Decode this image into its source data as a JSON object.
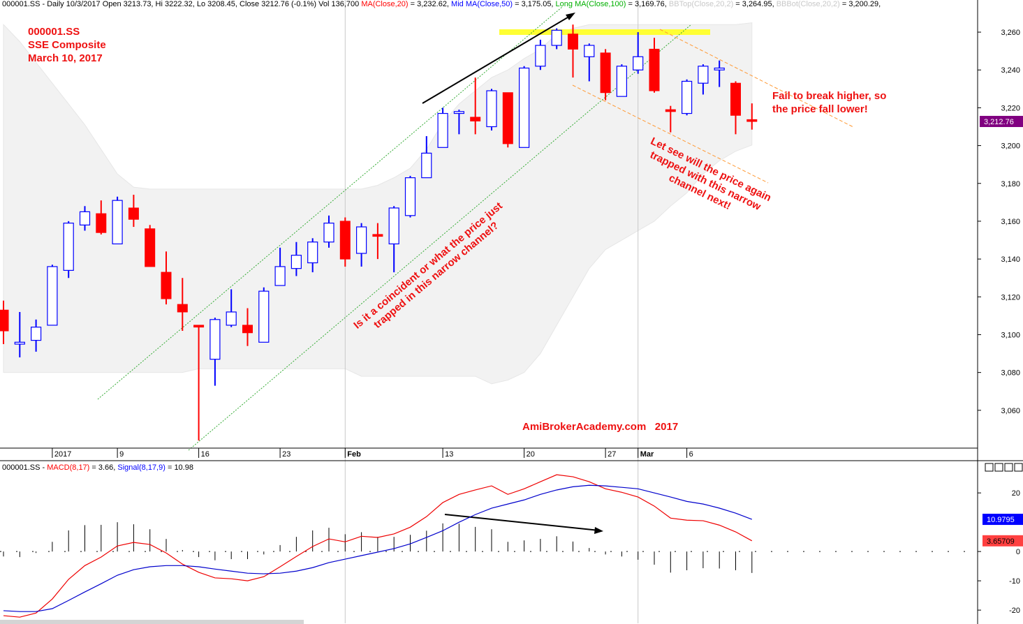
{
  "chart_data": [
    {
      "type": "candlestick",
      "header": [
        {
          "text": "000001.SS - Daily 10/3/2017 Open 3213.73, Hi 3222.32, Lo 3208.45, Close 3212.76 (-0.1%) Vol 136,700 ",
          "color": "#000000"
        },
        {
          "text": "MA(Close,20)",
          "color": "#ff0000"
        },
        {
          "text": " = 3,232.62, ",
          "color": "#000000"
        },
        {
          "text": "Mid MA(Close,50)",
          "color": "#0000ff"
        },
        {
          "text": " = 3,175.05, ",
          "color": "#000000"
        },
        {
          "text": "Long MA(Close,100)",
          "color": "#00b000"
        },
        {
          "text": " = 3,169.76, ",
          "color": "#000000"
        },
        {
          "text": "BBTop(Close,20,2)",
          "color": "#c8c8c8"
        },
        {
          "text": " = 3,264.95, ",
          "color": "#000000"
        },
        {
          "text": "BBBot(Close,20,2)",
          "color": "#c8c8c8"
        },
        {
          "text": " = 3,200.29,",
          "color": "#000000"
        }
      ],
      "categories": [
        null,
        null,
        null,
        "2017",
        null,
        null,
        null,
        "9",
        null,
        null,
        null,
        null,
        "16",
        null,
        null,
        null,
        null,
        "23",
        null,
        null,
        null,
        "Feb",
        null,
        null,
        null,
        null,
        null,
        "13",
        null,
        null,
        null,
        null,
        "20",
        null,
        null,
        null,
        null,
        "27",
        null,
        "Mar",
        null,
        null,
        "6",
        null,
        null,
        null,
        null
      ],
      "open": [
        3113,
        3095,
        3097,
        3105,
        3134,
        3158,
        3164,
        3148,
        3167,
        3156,
        3133,
        3116,
        3105,
        3087,
        3105,
        3105,
        3096,
        3126,
        3135,
        3138,
        3149,
        3160,
        3143,
        3153,
        3148,
        3163,
        3183,
        3199,
        3217,
        3215,
        3210,
        3228,
        3199,
        3242,
        3253,
        3259,
        3247,
        3249,
        3226,
        3240,
        3251,
        3219,
        3217,
        3233,
        3240,
        3233,
        3213.73
      ],
      "high": [
        3118,
        3112,
        3108,
        3137,
        3160,
        3168,
        3171,
        3173,
        3174,
        3158,
        3144,
        3130,
        3105,
        3109,
        3124,
        3114,
        3125,
        3146,
        3149,
        3151,
        3163,
        3162,
        3159,
        3159,
        3168,
        3184,
        3205,
        3220,
        3219,
        3236,
        3230,
        3228,
        3242,
        3256,
        3262,
        3264,
        3254,
        3251,
        3243,
        3260,
        3257,
        3221,
        3235,
        3243,
        3245,
        3234,
        3222.32
      ],
      "low": [
        3095,
        3088,
        3091,
        3105,
        3130,
        3155,
        3153,
        3148,
        3157,
        3136,
        3116,
        3102,
        3044,
        3073,
        3104,
        3094,
        3096,
        3126,
        3131,
        3133,
        3146,
        3136,
        3136,
        3140,
        3133,
        3162,
        3183,
        3199,
        3206,
        3206,
        3208,
        3199,
        3199,
        3240,
        3251,
        3236,
        3234,
        3224,
        3226,
        3238,
        3228,
        3207,
        3216,
        3227,
        3231,
        3206,
        3208.45
      ],
      "close": [
        3102,
        3096,
        3104,
        3136,
        3159,
        3165,
        3154,
        3171,
        3161,
        3136,
        3119,
        3112,
        3104,
        3108,
        3112,
        3101,
        3123,
        3136,
        3142,
        3149,
        3159,
        3140,
        3157,
        3152,
        3167,
        3183,
        3196,
        3217,
        3218,
        3213,
        3229,
        3201,
        3241,
        3253,
        3261,
        3251,
        3253,
        3228,
        3242,
        3247,
        3229,
        3218,
        3234,
        3242,
        3241,
        3216,
        3212.76
      ],
      "up_color": "#0000ff",
      "down_color": "#ff0000",
      "band": {
        "color": "#f2f2f2",
        "upper": [
          3264,
          3255,
          3244,
          3233,
          3222,
          3211,
          3198,
          3185,
          3178,
          3177,
          3177,
          3177,
          3177,
          3177,
          3177,
          3177,
          3177,
          3177,
          3177,
          3177,
          3177,
          3177,
          3177,
          3179,
          3183,
          3188,
          3198,
          3212,
          3222,
          3229,
          3236,
          3240,
          3246,
          3251,
          3259,
          3262,
          3264,
          3264,
          3264,
          3264,
          3264,
          3264,
          3264,
          3264,
          3264,
          3264,
          3264.95
        ],
        "lower": [
          3080,
          3080,
          3080,
          3080,
          3080,
          3080,
          3080,
          3080,
          3080,
          3080,
          3080,
          3080,
          3082,
          3082,
          3082,
          3082,
          3082,
          3082,
          3082,
          3082,
          3082,
          3082,
          3078,
          3078,
          3078,
          3078,
          3078,
          3078,
          3078,
          3078,
          3074,
          3076,
          3080,
          3090,
          3105,
          3120,
          3135,
          3145,
          3150,
          3155,
          3160,
          3168,
          3175,
          3185,
          3192,
          3197,
          3200.29
        ]
      },
      "last_label": "3,212.76",
      "last_color": "#800080",
      "ylim": [
        3040,
        3277
      ],
      "yticks": [
        {
          "value": 3060,
          "label": "3,060"
        },
        {
          "value": 3080,
          "label": "3,080"
        },
        {
          "value": 3100,
          "label": "3,100"
        },
        {
          "value": 3120,
          "label": "3,120"
        },
        {
          "value": 3140,
          "label": "3,140"
        },
        {
          "value": 3160,
          "label": "3,160"
        },
        {
          "value": 3180,
          "label": "3,180"
        },
        {
          "value": 3200,
          "label": "3,200"
        },
        {
          "value": 3220,
          "label": "3,220"
        },
        {
          "value": 3240,
          "label": "3,240"
        },
        {
          "value": 3260,
          "label": "3,260"
        }
      ],
      "annotations": [
        {
          "lines": [
            "000001.SS",
            "SSE Composite",
            "March 10, 2017"
          ],
          "color": "#ee1111"
        },
        {
          "lines": [
            "Fail to break higher, so",
            "the price fall lower!"
          ],
          "color": "#ee1111"
        },
        {
          "lines": [
            "Is it a coincident or what the price just",
            "trapped in this narrow channel?"
          ],
          "color": "#ee1111"
        },
        {
          "lines": [
            "Let see will the price again",
            "trapped with this narrow",
            "channel next!"
          ],
          "color": "#ee1111"
        },
        {
          "lines": [
            "AmiBrokerAcademy.com   2017"
          ],
          "color": "#ee1111"
        }
      ]
    },
    {
      "type": "line",
      "header": [
        {
          "text": "000001.SS - ",
          "color": "#000000"
        },
        {
          "text": "MACD(8,17)",
          "color": "#ff0000"
        },
        {
          "text": " = 3.66, ",
          "color": "#000000"
        },
        {
          "text": "Signal(8,17,9)",
          "color": "#0000ff"
        },
        {
          "text": " = 10.98",
          "color": "#000000"
        }
      ],
      "series": [
        {
          "name": "MACD(8,17)",
          "color": "#ee0000",
          "last_label": "3.65709",
          "label_fill": "#ff4040",
          "label_text": "#000000",
          "values": [
            -21.9,
            -22.4,
            -21,
            -16.2,
            -9.5,
            -4.8,
            -1.9,
            1.9,
            3.1,
            2.4,
            -0.5,
            -4.3,
            -7.1,
            -9,
            -9.3,
            -10,
            -8.6,
            -5.2,
            -1.7,
            1.7,
            4.3,
            3.3,
            5.2,
            4.8,
            6,
            8.3,
            11.9,
            16.7,
            19.5,
            21,
            22.4,
            19.5,
            21.4,
            23.8,
            26.2,
            25.5,
            23.8,
            21.4,
            20.2,
            18.6,
            15.5,
            11.4,
            10.7,
            10.5,
            9,
            6.7,
            3.65709
          ]
        },
        {
          "name": "Signal(8,17,9)",
          "color": "#0000cc",
          "last_label": "10.9795",
          "label_fill": "#0000ff",
          "label_text": "#ffffff",
          "values": [
            -20.2,
            -20.5,
            -20.5,
            -19.5,
            -16.7,
            -13.8,
            -11,
            -8.1,
            -6.2,
            -5.2,
            -4.8,
            -4.8,
            -5.2,
            -6,
            -6.7,
            -7.4,
            -7.6,
            -7.4,
            -6.7,
            -5.5,
            -3.8,
            -2.6,
            -1.4,
            -0.2,
            1,
            2.6,
            4.8,
            7.1,
            10,
            12.6,
            14.8,
            16.2,
            17.6,
            19.5,
            21,
            22.1,
            22.6,
            22.4,
            21.9,
            21.4,
            20,
            18.6,
            17.1,
            16.2,
            14.8,
            13.1,
            10.9795
          ]
        }
      ],
      "bars": {
        "color": "#000000",
        "values": [
          -1.7,
          -1.9,
          -0.5,
          3.3,
          7.2,
          9,
          9.1,
          10,
          9.3,
          7.6,
          4.3,
          0.5,
          -1.9,
          -3,
          -2.6,
          -2.6,
          -1,
          2.2,
          5,
          7.2,
          8.1,
          5.9,
          6.6,
          5,
          5,
          5.7,
          7.1,
          9.6,
          9.5,
          8.4,
          7.6,
          3.3,
          3.8,
          4.3,
          5.2,
          3.4,
          1.2,
          -1,
          -1.7,
          -2.8,
          -4.5,
          -7.2,
          -6.4,
          -5.7,
          -5.8,
          -6.4,
          -7.32
        ]
      },
      "ylim": [
        -24.5,
        31
      ],
      "yticks": [
        -20,
        -10,
        0,
        20
      ]
    }
  ]
}
